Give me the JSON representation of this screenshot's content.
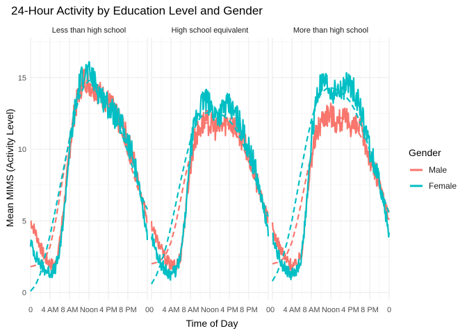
{
  "chart_data": {
    "type": "line",
    "title": "24-Hour Activity by Education Level and Gender",
    "xlabel": "Time of Day",
    "ylabel": "Mean MIMS (Activity Level)",
    "x_range_hours": [
      0,
      24
    ],
    "ylim": [
      -0.5,
      17.8
    ],
    "x_ticks": [
      {
        "hour": 0,
        "label": "0"
      },
      {
        "hour": 4,
        "label": "4 AM"
      },
      {
        "hour": 8,
        "label": "8 AM"
      },
      {
        "hour": 12,
        "label": "Noon"
      },
      {
        "hour": 16,
        "label": "4 PM"
      },
      {
        "hour": 20,
        "label": "8 PM"
      },
      {
        "hour": 24,
        "label": "0"
      }
    ],
    "y_ticks": [
      0,
      5,
      10,
      15
    ],
    "grid": true,
    "legend": {
      "title": "Gender",
      "placement": "right",
      "entries": [
        {
          "label": "Male",
          "color": "#F8766D"
        },
        {
          "label": "Female",
          "color": "#00BFC4"
        }
      ]
    },
    "panels": [
      {
        "title": "Less than high school",
        "series": [
          {
            "name": "Male",
            "color": "#F8766D",
            "x": [
              0,
              1,
              2,
              3,
              4,
              5,
              6,
              7,
              8,
              9,
              10,
              11,
              12,
              13,
              14,
              15,
              16,
              17,
              18,
              19,
              20,
              21,
              22,
              23,
              24
            ],
            "observed": [
              5.0,
              4.2,
              3.2,
              2.4,
              2.0,
              1.9,
              3.5,
              6.5,
              10.0,
              12.5,
              14.0,
              15.0,
              14.6,
              14.3,
              14.0,
              13.6,
              13.3,
              12.8,
              12.0,
              11.5,
              10.5,
              9.5,
              8.0,
              6.5,
              5.2
            ],
            "smooth": [
              1.8,
              1.9,
              2.1,
              2.4,
              3.2,
              4.7,
              6.7,
              8.8,
              10.8,
              12.5,
              13.8,
              14.5,
              14.6,
              14.4,
              14.1,
              13.7,
              13.2,
              12.6,
              11.8,
              10.8,
              9.6,
              8.4,
              7.3,
              6.4,
              5.8
            ]
          },
          {
            "name": "Female",
            "color": "#00BFC4",
            "x": [
              0,
              1,
              2,
              3,
              4,
              5,
              6,
              7,
              8,
              9,
              10,
              11,
              12,
              13,
              14,
              15,
              16,
              17,
              18,
              19,
              20,
              21,
              22,
              23,
              24
            ],
            "observed": [
              3.5,
              2.6,
              2.0,
              1.6,
              1.4,
              1.6,
              2.8,
              6.0,
              10.0,
              12.5,
              14.5,
              15.5,
              15.3,
              14.8,
              14.0,
              13.5,
              13.0,
              12.5,
              12.0,
              11.5,
              10.5,
              9.5,
              8.0,
              6.0,
              4.0
            ],
            "smooth": [
              0.1,
              0.5,
              1.3,
              2.6,
              4.0,
              5.6,
              7.3,
              9.0,
              10.7,
              12.3,
              13.6,
              14.4,
              14.8,
              14.7,
              14.4,
              13.9,
              13.3,
              12.6,
              11.8,
              10.8,
              9.8,
              8.7,
              7.6,
              6.6,
              5.8
            ]
          }
        ]
      },
      {
        "title": "High school equivalent",
        "series": [
          {
            "name": "Male",
            "color": "#F8766D",
            "x": [
              0,
              1,
              2,
              3,
              4,
              5,
              6,
              7,
              8,
              9,
              10,
              11,
              12,
              13,
              14,
              15,
              16,
              17,
              18,
              19,
              20,
              21,
              22,
              23,
              24
            ],
            "observed": [
              4.8,
              3.8,
              3.0,
              2.3,
              1.9,
              1.8,
              2.6,
              5.5,
              9.0,
              10.8,
              11.5,
              12.0,
              11.8,
              11.5,
              11.5,
              11.8,
              12.0,
              11.6,
              11.2,
              10.5,
              9.5,
              8.5,
              7.2,
              6.2,
              5.0
            ],
            "smooth": [
              2.0,
              2.1,
              2.3,
              2.7,
              3.5,
              4.8,
              6.5,
              8.2,
              9.6,
              10.7,
              11.4,
              11.8,
              11.9,
              11.9,
              11.8,
              11.7,
              11.5,
              11.2,
              10.7,
              10.0,
              9.1,
              8.1,
              7.1,
              6.2,
              5.5
            ]
          },
          {
            "name": "Female",
            "color": "#00BFC4",
            "x": [
              0,
              1,
              2,
              3,
              4,
              5,
              6,
              7,
              8,
              9,
              10,
              11,
              12,
              13,
              14,
              15,
              16,
              17,
              18,
              19,
              20,
              21,
              22,
              23,
              24
            ],
            "observed": [
              4.0,
              2.8,
              2.0,
              1.5,
              1.3,
              1.5,
              2.5,
              5.5,
              9.8,
              12.0,
              13.0,
              13.5,
              13.0,
              12.5,
              12.5,
              13.0,
              13.0,
              12.5,
              12.0,
              11.0,
              10.0,
              9.0,
              7.5,
              6.0,
              4.0
            ],
            "smooth": [
              0.6,
              1.2,
              2.1,
              3.2,
              4.6,
              6.2,
              7.8,
              9.3,
              10.6,
              11.6,
              12.2,
              12.5,
              12.6,
              12.6,
              12.5,
              12.3,
              12.0,
              11.6,
              11.0,
              10.2,
              9.3,
              8.3,
              7.2,
              6.3,
              5.3
            ]
          }
        ]
      },
      {
        "title": "More than high school",
        "series": [
          {
            "name": "Male",
            "color": "#F8766D",
            "x": [
              0,
              1,
              2,
              3,
              4,
              5,
              6,
              7,
              8,
              9,
              10,
              11,
              12,
              13,
              14,
              15,
              16,
              17,
              18,
              19,
              20,
              21,
              22,
              23,
              24
            ],
            "observed": [
              4.5,
              3.5,
              2.8,
              2.2,
              1.9,
              1.9,
              2.8,
              6.0,
              9.5,
              11.0,
              12.0,
              12.5,
              12.5,
              12.0,
              12.0,
              12.0,
              11.8,
              11.5,
              11.5,
              10.5,
              9.5,
              8.5,
              7.5,
              6.5,
              5.0
            ],
            "smooth": [
              2.0,
              2.1,
              2.3,
              2.7,
              3.5,
              4.8,
              6.4,
              8.1,
              9.6,
              10.8,
              11.6,
              12.1,
              12.3,
              12.3,
              12.2,
              12.0,
              11.8,
              11.5,
              11.0,
              10.3,
              9.4,
              8.4,
              7.4,
              6.4,
              5.6
            ]
          },
          {
            "name": "Female",
            "color": "#00BFC4",
            "x": [
              0,
              1,
              2,
              3,
              4,
              5,
              6,
              7,
              8,
              9,
              10,
              11,
              12,
              13,
              14,
              15,
              16,
              17,
              18,
              19,
              20,
              21,
              22,
              23,
              24
            ],
            "observed": [
              4.0,
              2.8,
              2.0,
              1.5,
              1.3,
              1.5,
              2.5,
              6.0,
              10.5,
              13.5,
              14.5,
              14.5,
              14.0,
              14.0,
              14.0,
              14.5,
              14.5,
              14.0,
              13.0,
              11.5,
              10.0,
              9.0,
              7.5,
              6.0,
              4.0
            ],
            "smooth": [
              0.8,
              1.4,
              2.3,
              3.5,
              5.0,
              6.8,
              8.7,
              10.5,
              12.0,
              13.2,
              13.9,
              14.2,
              14.3,
              14.2,
              14.0,
              13.7,
              13.3,
              12.7,
              11.9,
              11.0,
              9.9,
              8.8,
              7.6,
              6.5,
              5.5
            ]
          }
        ]
      }
    ]
  }
}
